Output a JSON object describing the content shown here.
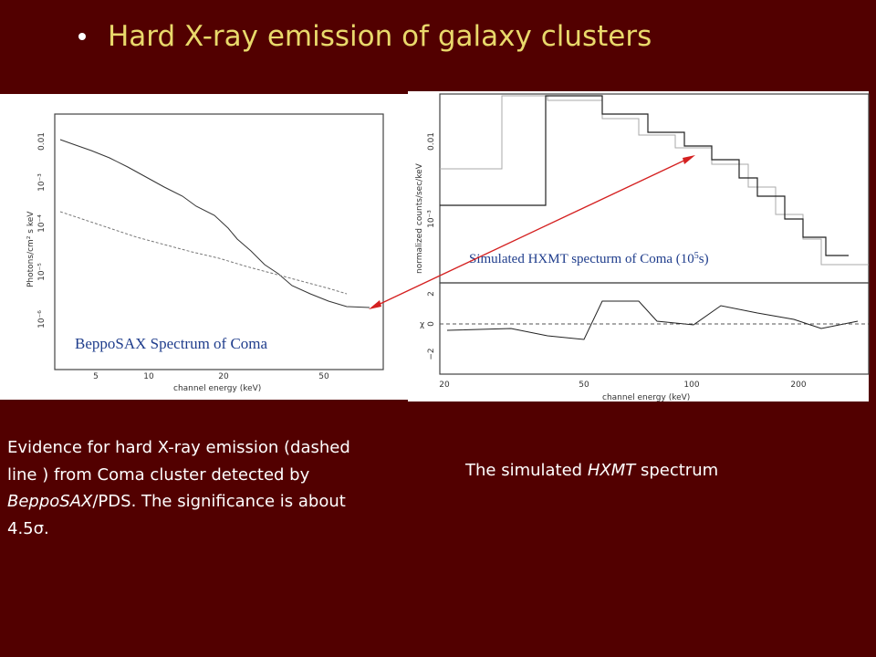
{
  "title": "Hard X-ray emission of galaxy clusters",
  "left_plot": {
    "caption": "BeppoSAX Spectrum of Coma",
    "xlabel": "channel energy (keV)",
    "ylabel": "Photons/cm² s keV",
    "xticks": [
      "5",
      "10",
      "20",
      "50"
    ],
    "yticks": [
      "0.01",
      "10⁻³",
      "10⁻⁴",
      "10⁻⁵",
      "10⁻⁶"
    ]
  },
  "right_plot": {
    "caption": [
      "Simulated HXMT specturm of Coma (10",
      "5",
      "s)"
    ],
    "xlabel": "channel energy (keV)",
    "ylabel": "normalized counts/sec/keV",
    "yticks": [
      "0.01",
      "10⁻³"
    ],
    "residual_label": "χ",
    "residual_ticks": [
      "2",
      "0",
      "−2"
    ],
    "xticks": [
      "20",
      "50",
      "100",
      "200"
    ]
  },
  "left_text": [
    "Evidence for hard X-ray emission (dashed line ) from Coma cluster detected by ",
    "BeppoSAX",
    "/PDS. The significance is about 4.5σ."
  ],
  "right_text": [
    "The simulated ",
    "HXMT",
    " spectrum"
  ]
}
